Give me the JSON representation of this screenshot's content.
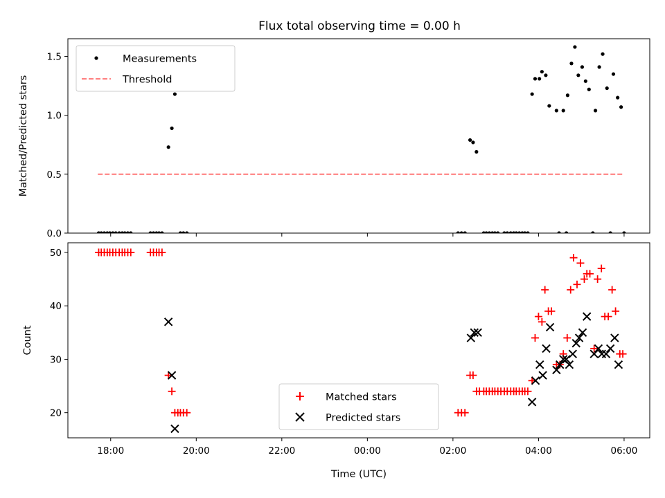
{
  "figure": {
    "title": "Flux total observing time = 0.00 h"
  },
  "chart_data": [
    {
      "type": "scatter",
      "title": "Flux total observing time = 0.00 h",
      "xlabel": "",
      "ylabel": "Matched/Predicted stars",
      "xlim": [
        -7,
        6.6
      ],
      "ylim": [
        0,
        1.65
      ],
      "x_ticks": [
        -6,
        -4,
        -2,
        0,
        2,
        4,
        6
      ],
      "y_ticks": [
        0.0,
        0.5,
        1.0,
        1.5
      ],
      "y_tick_labels": [
        "0.0",
        "0.5",
        "1.0",
        "1.5"
      ],
      "legend_position": "upper-left",
      "series": [
        {
          "name": "Measurements",
          "kind": "points",
          "color": "#000000",
          "points": [
            [
              -6.28,
              0
            ],
            [
              -6.22,
              0
            ],
            [
              -6.15,
              0
            ],
            [
              -6.08,
              0
            ],
            [
              -6.02,
              0
            ],
            [
              -5.95,
              0
            ],
            [
              -5.88,
              0
            ],
            [
              -5.8,
              0
            ],
            [
              -5.73,
              0
            ],
            [
              -5.67,
              0
            ],
            [
              -5.6,
              0
            ],
            [
              -5.53,
              0
            ],
            [
              -5.07,
              0
            ],
            [
              -5.0,
              0
            ],
            [
              -4.93,
              0
            ],
            [
              -4.87,
              0
            ],
            [
              -4.8,
              0
            ],
            [
              -4.65,
              0.73
            ],
            [
              -4.57,
              0.89
            ],
            [
              -4.5,
              1.18
            ],
            [
              -4.37,
              0
            ],
            [
              -4.3,
              0
            ],
            [
              -4.22,
              0
            ],
            [
              2.12,
              0
            ],
            [
              2.2,
              0
            ],
            [
              2.28,
              0
            ],
            [
              2.4,
              0.79
            ],
            [
              2.47,
              0.77
            ],
            [
              2.55,
              0.69
            ],
            [
              2.72,
              0
            ],
            [
              2.78,
              0
            ],
            [
              2.85,
              0
            ],
            [
              2.92,
              0
            ],
            [
              2.98,
              0
            ],
            [
              3.05,
              0
            ],
            [
              3.2,
              0
            ],
            [
              3.27,
              0
            ],
            [
              3.35,
              0
            ],
            [
              3.42,
              0
            ],
            [
              3.48,
              0
            ],
            [
              3.55,
              0
            ],
            [
              3.62,
              0
            ],
            [
              3.68,
              0
            ],
            [
              3.75,
              0
            ],
            [
              3.85,
              1.18
            ],
            [
              3.92,
              1.31
            ],
            [
              4.02,
              1.31
            ],
            [
              4.08,
              1.37
            ],
            [
              4.17,
              1.34
            ],
            [
              4.25,
              1.08
            ],
            [
              4.42,
              1.04
            ],
            [
              4.48,
              0
            ],
            [
              4.65,
              0
            ],
            [
              4.58,
              1.04
            ],
            [
              4.68,
              1.17
            ],
            [
              4.77,
              1.44
            ],
            [
              4.85,
              1.58
            ],
            [
              4.93,
              1.34
            ],
            [
              5.02,
              1.41
            ],
            [
              5.1,
              1.29
            ],
            [
              5.18,
              1.22
            ],
            [
              5.27,
              0
            ],
            [
              5.33,
              1.04
            ],
            [
              5.42,
              1.41
            ],
            [
              5.5,
              1.52
            ],
            [
              5.6,
              1.23
            ],
            [
              5.68,
              0
            ],
            [
              5.75,
              1.35
            ],
            [
              5.85,
              1.15
            ],
            [
              5.93,
              1.07
            ],
            [
              6.0,
              0
            ]
          ]
        },
        {
          "name": "Threshold",
          "kind": "dashed-line",
          "color": "#ff7f7f",
          "x": [
            -6.3,
            6.0
          ],
          "y": [
            0.5,
            0.5
          ]
        }
      ]
    },
    {
      "type": "scatter",
      "title": "",
      "xlabel": "Time (UTC)",
      "ylabel": "Count",
      "xlim": [
        -7,
        6.6
      ],
      "ylim": [
        15.3,
        51.8
      ],
      "x_ticks": [
        -6,
        -4,
        -2,
        0,
        2,
        4,
        6
      ],
      "x_tick_labels": [
        "18:00",
        "20:00",
        "22:00",
        "00:00",
        "02:00",
        "04:00",
        "06:00"
      ],
      "y_ticks": [
        20,
        30,
        40,
        50
      ],
      "y_tick_labels": [
        "20",
        "30",
        "40",
        "50"
      ],
      "legend_position": "lower-center",
      "series": [
        {
          "name": "Matched stars",
          "marker": "plus",
          "color": "#ff0000",
          "points": [
            [
              -6.28,
              50
            ],
            [
              -6.22,
              50
            ],
            [
              -6.15,
              50
            ],
            [
              -6.08,
              50
            ],
            [
              -6.02,
              50
            ],
            [
              -5.95,
              50
            ],
            [
              -5.88,
              50
            ],
            [
              -5.8,
              50
            ],
            [
              -5.73,
              50
            ],
            [
              -5.67,
              50
            ],
            [
              -5.6,
              50
            ],
            [
              -5.53,
              50
            ],
            [
              -5.07,
              50
            ],
            [
              -5.0,
              50
            ],
            [
              -4.93,
              50
            ],
            [
              -4.87,
              50
            ],
            [
              -4.8,
              50
            ],
            [
              -4.65,
              27
            ],
            [
              -4.57,
              24
            ],
            [
              -4.5,
              20
            ],
            [
              -4.43,
              20
            ],
            [
              -4.37,
              20
            ],
            [
              -4.3,
              20
            ],
            [
              -4.22,
              20
            ],
            [
              2.12,
              20
            ],
            [
              2.2,
              20
            ],
            [
              2.28,
              20
            ],
            [
              2.4,
              27
            ],
            [
              2.47,
              27
            ],
            [
              2.55,
              24
            ],
            [
              2.62,
              24
            ],
            [
              2.72,
              24
            ],
            [
              2.78,
              24
            ],
            [
              2.85,
              24
            ],
            [
              2.92,
              24
            ],
            [
              2.98,
              24
            ],
            [
              3.05,
              24
            ],
            [
              3.12,
              24
            ],
            [
              3.2,
              24
            ],
            [
              3.27,
              24
            ],
            [
              3.35,
              24
            ],
            [
              3.42,
              24
            ],
            [
              3.48,
              24
            ],
            [
              3.55,
              24
            ],
            [
              3.62,
              24
            ],
            [
              3.68,
              24
            ],
            [
              3.75,
              24
            ],
            [
              3.85,
              26
            ],
            [
              3.92,
              34
            ],
            [
              4.0,
              38
            ],
            [
              4.08,
              37
            ],
            [
              4.15,
              43
            ],
            [
              4.23,
              39
            ],
            [
              4.3,
              39
            ],
            [
              4.42,
              29
            ],
            [
              4.5,
              29
            ],
            [
              4.58,
              31
            ],
            [
              4.67,
              34
            ],
            [
              4.75,
              43
            ],
            [
              4.82,
              49
            ],
            [
              4.9,
              44
            ],
            [
              4.98,
              48
            ],
            [
              5.07,
              45
            ],
            [
              5.13,
              46
            ],
            [
              5.2,
              46
            ],
            [
              5.3,
              32
            ],
            [
              5.38,
              45
            ],
            [
              5.47,
              47
            ],
            [
              5.55,
              38
            ],
            [
              5.63,
              38
            ],
            [
              5.72,
              43
            ],
            [
              5.8,
              39
            ],
            [
              5.9,
              31
            ],
            [
              5.97,
              31
            ]
          ]
        },
        {
          "name": "Predicted stars",
          "marker": "x",
          "color": "#000000",
          "points": [
            [
              -4.65,
              37
            ],
            [
              -4.57,
              27
            ],
            [
              -4.5,
              17
            ],
            [
              2.42,
              34
            ],
            [
              2.5,
              35
            ],
            [
              2.58,
              35
            ],
            [
              3.85,
              22
            ],
            [
              3.93,
              26
            ],
            [
              4.03,
              29
            ],
            [
              4.1,
              27
            ],
            [
              4.18,
              32
            ],
            [
              4.27,
              36
            ],
            [
              4.42,
              28
            ],
            [
              4.5,
              29
            ],
            [
              4.58,
              30
            ],
            [
              4.65,
              30
            ],
            [
              4.72,
              29
            ],
            [
              4.8,
              31
            ],
            [
              4.88,
              33
            ],
            [
              4.95,
              34
            ],
            [
              5.03,
              35
            ],
            [
              5.13,
              38
            ],
            [
              5.3,
              31
            ],
            [
              5.4,
              32
            ],
            [
              5.48,
              31
            ],
            [
              5.58,
              31
            ],
            [
              5.68,
              32
            ],
            [
              5.78,
              34
            ],
            [
              5.87,
              29
            ]
          ]
        }
      ]
    }
  ]
}
